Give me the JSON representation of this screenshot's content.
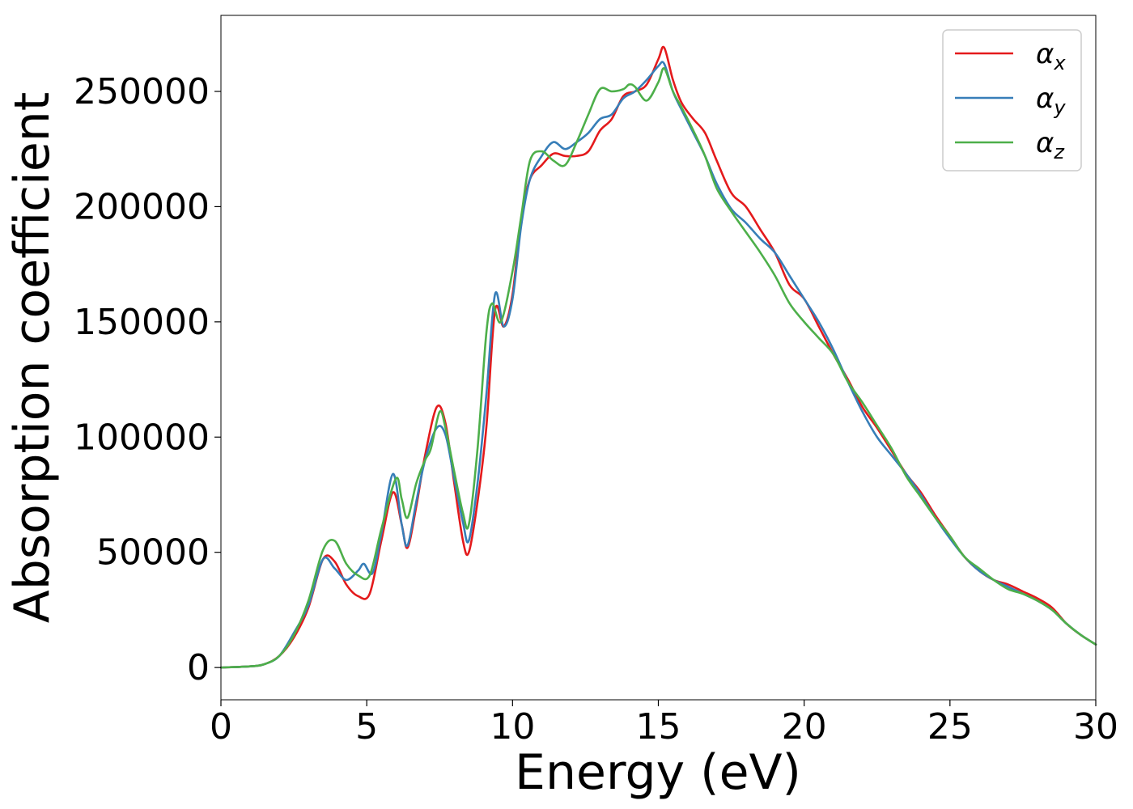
{
  "chart_data": {
    "type": "line",
    "xlabel": "Energy (eV)",
    "ylabel": "Absorption coefficient",
    "xlim": [
      0,
      30
    ],
    "ylim": [
      -14000,
      283000
    ],
    "xticks": [
      0,
      5,
      10,
      15,
      20,
      25,
      30
    ],
    "yticks": [
      0,
      50000,
      100000,
      150000,
      200000,
      250000
    ],
    "grid": false,
    "legend_position": "top-right",
    "series": [
      {
        "name": "α",
        "subscript": "x",
        "color": "#e41a1c",
        "x": [
          0,
          1,
          1.5,
          2,
          2.5,
          3,
          3.5,
          3.9,
          4.3,
          4.7,
          5.1,
          5.5,
          5.9,
          6.2,
          6.4,
          6.7,
          7.0,
          7.4,
          7.7,
          8.0,
          8.3,
          8.5,
          8.8,
          9.1,
          9.4,
          9.7,
          10.0,
          10.3,
          10.6,
          11.0,
          11.4,
          11.8,
          12.2,
          12.6,
          13.0,
          13.4,
          13.8,
          14.2,
          14.6,
          15.0,
          15.2,
          15.5,
          15.8,
          16.2,
          16.6,
          17.0,
          17.5,
          18.0,
          18.5,
          19.0,
          19.5,
          20.0,
          20.5,
          21.0,
          21.5,
          22.0,
          22.5,
          23.0,
          23.5,
          24.0,
          24.5,
          25.0,
          25.5,
          26.0,
          26.5,
          27.0,
          27.5,
          28.0,
          28.5,
          29.0,
          29.5,
          30.0
        ],
        "values": [
          0,
          500,
          1500,
          5000,
          13000,
          26000,
          47000,
          46000,
          36000,
          31000,
          32000,
          55000,
          76000,
          62000,
          52000,
          70000,
          92000,
          113000,
          106000,
          80000,
          55000,
          50000,
          72000,
          104000,
          155000,
          148000,
          162000,
          195000,
          212000,
          218000,
          223000,
          222000,
          222000,
          224000,
          233000,
          238000,
          248000,
          250000,
          253000,
          264000,
          269000,
          255000,
          245000,
          238000,
          232000,
          220000,
          206000,
          200000,
          190000,
          180000,
          166000,
          160000,
          148000,
          136000,
          125000,
          113000,
          104000,
          94000,
          84000,
          76000,
          66000,
          57000,
          48000,
          42000,
          38000,
          36000,
          33000,
          30000,
          26000,
          19000,
          14000,
          10000
        ]
      },
      {
        "name": "α",
        "subscript": "y",
        "color": "#377eb8",
        "x": [
          0,
          1,
          1.5,
          2,
          2.5,
          3,
          3.5,
          3.9,
          4.3,
          4.7,
          4.9,
          5.2,
          5.5,
          5.9,
          6.2,
          6.4,
          6.7,
          7.0,
          7.4,
          7.7,
          8.0,
          8.3,
          8.5,
          8.8,
          9.1,
          9.4,
          9.7,
          10.0,
          10.3,
          10.6,
          11.0,
          11.4,
          11.8,
          12.2,
          12.6,
          13.0,
          13.4,
          13.8,
          14.2,
          14.6,
          15.0,
          15.2,
          15.5,
          15.8,
          16.2,
          16.6,
          17.0,
          17.5,
          18.0,
          18.5,
          19.0,
          19.5,
          20.0,
          20.5,
          21.0,
          21.5,
          22.0,
          22.5,
          23.0,
          23.5,
          24.0,
          24.5,
          25.0,
          25.5,
          26.0,
          26.5,
          27.0,
          27.5,
          28.0,
          28.5,
          29.0,
          29.5,
          30.0
        ],
        "values": [
          0,
          500,
          1500,
          5000,
          15000,
          27000,
          47000,
          43000,
          38000,
          42000,
          45000,
          41000,
          58000,
          84000,
          62000,
          53000,
          72000,
          90000,
          104000,
          101000,
          82000,
          63000,
          55000,
          80000,
          118000,
          162000,
          148000,
          160000,
          192000,
          212000,
          222000,
          228000,
          225000,
          228000,
          232000,
          238000,
          240000,
          247000,
          250000,
          255000,
          261000,
          262000,
          250000,
          242000,
          232000,
          222000,
          210000,
          199000,
          193000,
          186000,
          180000,
          170000,
          160000,
          150000,
          138000,
          124000,
          111000,
          100000,
          92000,
          84000,
          75000,
          65000,
          56000,
          48000,
          42000,
          38000,
          35000,
          32000,
          29000,
          25000,
          19000,
          14000,
          10000
        ]
      },
      {
        "name": "α",
        "subscript": "z",
        "color": "#4daf4a",
        "x": [
          0,
          1,
          1.5,
          2,
          2.5,
          3,
          3.5,
          3.9,
          4.3,
          4.7,
          5.1,
          5.5,
          6.0,
          6.2,
          6.4,
          6.7,
          7.0,
          7.2,
          7.5,
          7.7,
          8.0,
          8.3,
          8.5,
          8.8,
          9.1,
          9.3,
          9.6,
          10.0,
          10.3,
          10.6,
          11.0,
          11.4,
          11.8,
          12.2,
          12.6,
          13.0,
          13.4,
          13.8,
          14.0,
          14.2,
          14.6,
          15.0,
          15.2,
          15.5,
          15.8,
          16.2,
          16.6,
          17.0,
          17.5,
          18.0,
          18.5,
          19.0,
          19.5,
          20.0,
          20.5,
          21.0,
          21.5,
          22.0,
          22.5,
          23.0,
          23.5,
          24.0,
          24.5,
          25.0,
          25.5,
          26.0,
          26.5,
          27.0,
          27.5,
          28.0,
          28.5,
          29.0,
          29.5,
          30.0
        ],
        "values": [
          0,
          500,
          1500,
          5000,
          14000,
          29000,
          51000,
          55000,
          45000,
          40000,
          40000,
          60000,
          82000,
          73000,
          65000,
          80000,
          90000,
          95000,
          111000,
          104000,
          85000,
          67000,
          62000,
          95000,
          145000,
          158000,
          150000,
          172000,
          196000,
          220000,
          224000,
          220000,
          218000,
          228000,
          240000,
          251000,
          250000,
          251000,
          253000,
          252000,
          246000,
          254000,
          260000,
          250000,
          243000,
          233000,
          222000,
          208000,
          198000,
          189000,
          180000,
          170000,
          158000,
          150000,
          143000,
          136000,
          124000,
          115000,
          105000,
          95000,
          83000,
          74000,
          65000,
          57000,
          48000,
          43000,
          38000,
          34000,
          32000,
          29000,
          25000,
          19000,
          14000,
          10000
        ]
      }
    ]
  }
}
